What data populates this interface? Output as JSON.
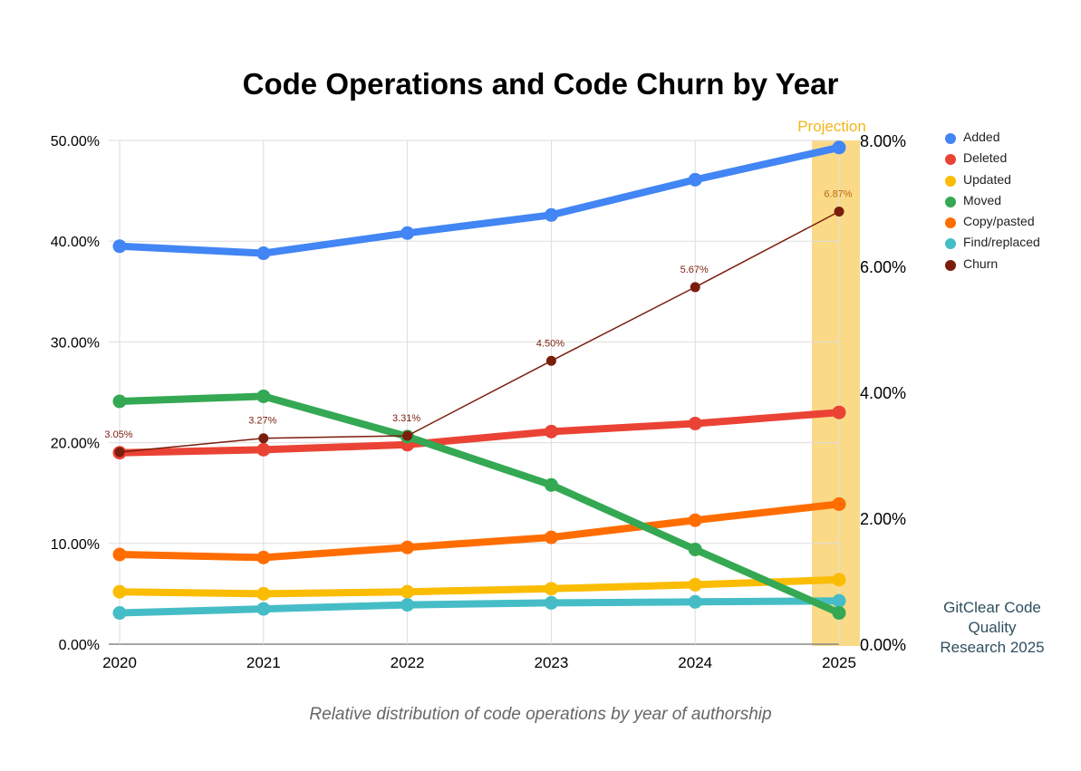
{
  "chart_data": {
    "type": "line",
    "title": "Code Operations and Code Churn by Year",
    "caption": "Relative distribution of code operations by year of authorship",
    "credit": "GitClear Code Quality Research 2025",
    "projection_label": "Projection",
    "projection_year": "2025",
    "categories": [
      "2020",
      "2021",
      "2022",
      "2023",
      "2024",
      "2025"
    ],
    "y_left": {
      "range": [
        0,
        50
      ],
      "ticks": [
        0,
        10,
        20,
        30,
        40,
        50
      ],
      "tick_labels": [
        "0.00%",
        "10.00%",
        "20.00%",
        "30.00%",
        "40.00%",
        "50.00%"
      ]
    },
    "y_right": {
      "range": [
        0,
        8
      ],
      "ticks": [
        0,
        2,
        4,
        6,
        8
      ],
      "tick_labels": [
        "0.00%",
        "2.00%",
        "4.00%",
        "6.00%",
        "8.00%"
      ]
    },
    "series": [
      {
        "name": "Added",
        "axis": "left",
        "color": "#4285f4",
        "values": [
          39.5,
          38.8,
          40.8,
          42.6,
          46.1,
          49.3
        ]
      },
      {
        "name": "Deleted",
        "axis": "left",
        "color": "#ea4335",
        "values": [
          19.0,
          19.3,
          19.8,
          21.1,
          21.9,
          23.0
        ]
      },
      {
        "name": "Updated",
        "axis": "left",
        "color": "#fbbc04",
        "values": [
          5.2,
          5.0,
          5.2,
          5.5,
          5.9,
          6.4
        ]
      },
      {
        "name": "Moved",
        "axis": "left",
        "color": "#34a853",
        "values": [
          24.1,
          24.6,
          20.6,
          15.8,
          9.4,
          3.1
        ]
      },
      {
        "name": "Copy/pasted",
        "axis": "left",
        "color": "#ff6d01",
        "values": [
          8.9,
          8.6,
          9.6,
          10.6,
          12.3,
          13.9
        ]
      },
      {
        "name": "Find/replaced",
        "axis": "left",
        "color": "#46bdc6",
        "values": [
          3.1,
          3.5,
          3.9,
          4.1,
          4.2,
          4.3
        ]
      },
      {
        "name": "Churn",
        "axis": "right",
        "color": "#7b1d0c",
        "values": [
          3.05,
          3.27,
          3.31,
          4.5,
          5.67,
          6.87
        ],
        "data_labels": [
          "3.05%",
          "3.27%",
          "3.31%",
          "4.50%",
          "5.67%",
          "6.87%"
        ]
      }
    ],
    "legend_position": "right"
  }
}
